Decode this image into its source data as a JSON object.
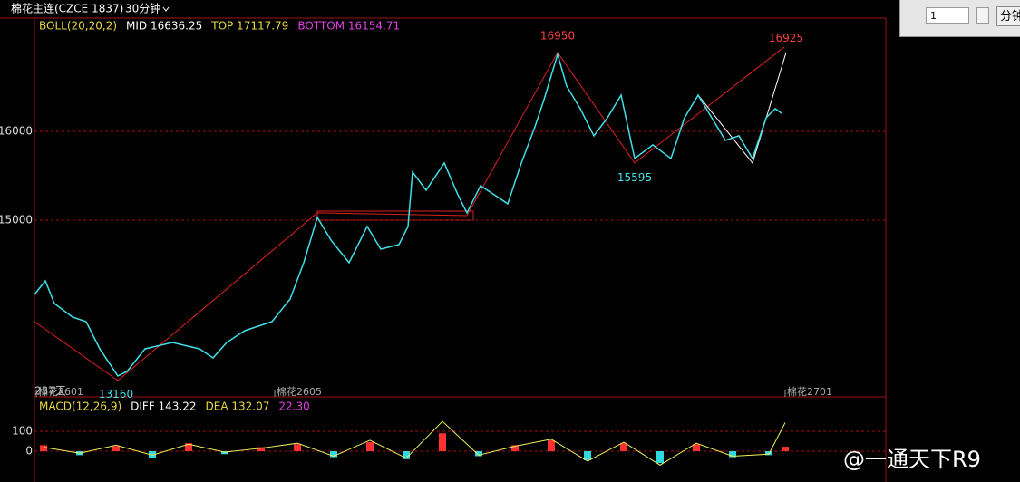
{
  "header": {
    "symbol": "棉花主连(CZCE 1837)",
    "period": "30分钟",
    "input_value": "1",
    "unit_button": "分钟"
  },
  "watermark": "@一通天下R9",
  "days_label": "237天",
  "chart_data": [
    {
      "type": "line",
      "indicator": {
        "name": "BOLL(20,20,2)",
        "mid": "MID 16636.25",
        "top": "TOP 17117.79",
        "bottom": "BOTTOM 16154.71"
      },
      "x": [
        0,
        12,
        22,
        42,
        57,
        72,
        92,
        102,
        122,
        152,
        182,
        197,
        212,
        232,
        262,
        282,
        297,
        312,
        327,
        347,
        367,
        382,
        402,
        412,
        417,
        432,
        452,
        467,
        477,
        492,
        507,
        522,
        537,
        552,
        562,
        577,
        587,
        602,
        617,
        632,
        647,
        662,
        682,
        702,
        717,
        732,
        747,
        762,
        777,
        792,
        807,
        817,
        824
      ],
      "series": [
        {
          "color": "#40e0e8",
          "values": [
            14163,
            14316,
            14061,
            13908,
            13857,
            13551,
            13245,
            13296,
            13551,
            13622,
            13551,
            13449,
            13622,
            13755,
            13857,
            14112,
            14520,
            15031,
            14776,
            14520,
            14929,
            14673,
            14724,
            14929,
            15541,
            15337,
            15643,
            15286,
            15082,
            15388,
            15286,
            15184,
            15643,
            16051,
            16357,
            16867,
            16510,
            16255,
            15949,
            16153,
            16408,
            15694,
            15847,
            15694,
            16153,
            16408,
            16153,
            15898,
            15949,
            15694,
            16153,
            16255,
            16204
          ]
        }
      ],
      "trend_lines": [
        {
          "color": "#e02020",
          "x": [
            0,
            92,
            312,
            477,
            577,
            662,
            827
          ],
          "values": [
            13857,
            13194,
            15082,
            15051,
            16888,
            15643,
            16949
          ]
        },
        {
          "color": "#ffffff",
          "x": [
            732,
            792,
            829
          ],
          "values": [
            16408,
            15643,
            16888
          ]
        }
      ],
      "annotations": [
        {
          "text": "16950",
          "x": 577,
          "y": 16950,
          "color": "#ff4040"
        },
        {
          "text": "16925",
          "x": 829,
          "y": 16925,
          "color": "#ff4040"
        },
        {
          "text": "15595",
          "x": 662,
          "y": 15595,
          "color": "#40e0e8"
        },
        {
          "text": "13160",
          "x": 90,
          "y": 13160,
          "color": "#40e0e8"
        }
      ],
      "xlim": [
        0,
        939
      ],
      "ylim": [
        13010,
        17275
      ],
      "xticks": [
        {
          "value": 2,
          "label": "棉花2601"
        },
        {
          "value": 265,
          "label": "棉花2605"
        },
        {
          "value": 828,
          "label": "棉花2701"
        }
      ],
      "yticks": [
        15000,
        16000
      ],
      "grid": true
    },
    {
      "type": "bar",
      "indicator": {
        "name": "MACD(12,26,9)",
        "diff": "DIFF 143.22",
        "dea": "DEA 132.07",
        "macd": "22.30"
      },
      "x": [
        10,
        50,
        90,
        130,
        170,
        210,
        250,
        290,
        330,
        370,
        410,
        450,
        490,
        530,
        570,
        610,
        650,
        690,
        730,
        770,
        810,
        828
      ],
      "values": [
        30,
        -20,
        25,
        -35,
        40,
        -15,
        20,
        35,
        -30,
        45,
        -40,
        90,
        -25,
        30,
        55,
        -45,
        40,
        -60,
        35,
        -30,
        -20,
        22.3
      ],
      "up_color": "#ff3030",
      "down_color": "#30d8e0",
      "line": {
        "color": "#f0f060",
        "values": [
          20,
          -10,
          30,
          -20,
          35,
          -5,
          15,
          40,
          -25,
          55,
          -35,
          150,
          -20,
          25,
          60,
          -50,
          45,
          -70,
          40,
          -25,
          -15,
          143.22
        ]
      },
      "xlim": [
        0,
        939
      ],
      "ylim": [
        -123,
        264
      ],
      "yticks": [
        0,
        100
      ],
      "grid": true
    }
  ]
}
